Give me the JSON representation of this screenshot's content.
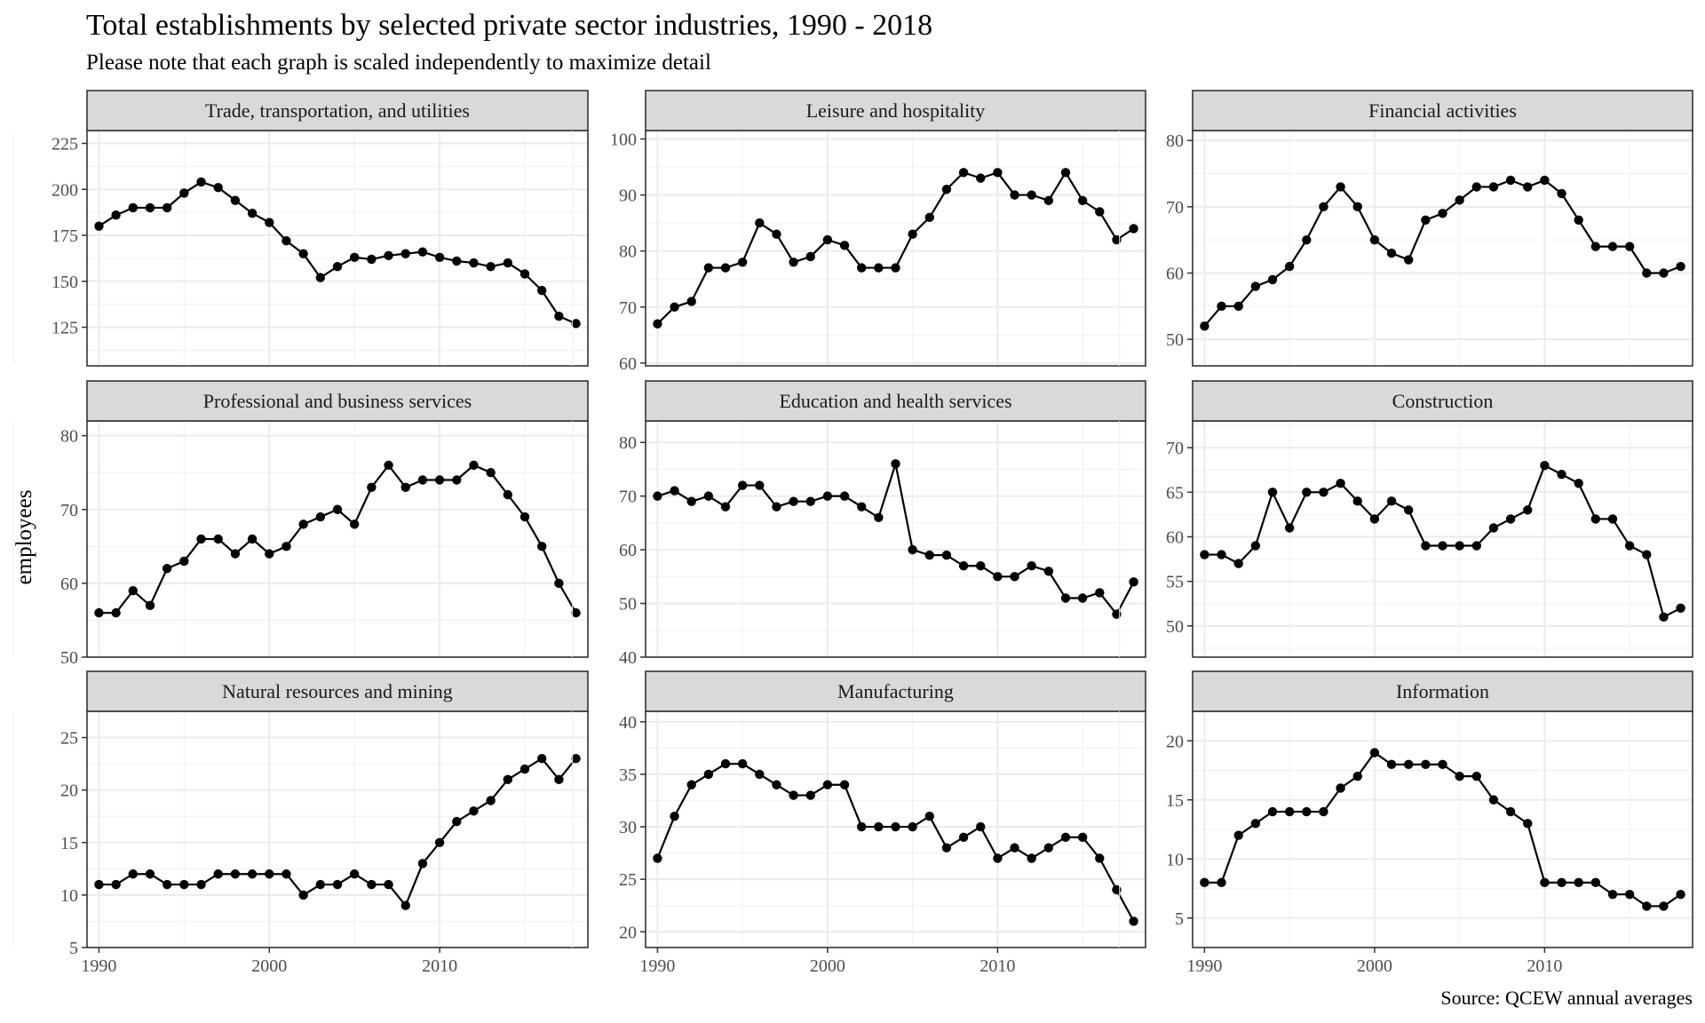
{
  "chart_data": {
    "type": "line",
    "title": "Total establishments by selected private sector industries, 1990 - 2018",
    "subtitle": "Please note that each graph is scaled independently to maximize detail",
    "ylabel": "employees",
    "caption": "Source: QCEW annual averages",
    "x": [
      1990,
      1991,
      1992,
      1993,
      1994,
      1995,
      1996,
      1997,
      1998,
      1999,
      2000,
      2001,
      2002,
      2003,
      2004,
      2005,
      2006,
      2007,
      2008,
      2009,
      2010,
      2011,
      2012,
      2013,
      2014,
      2015,
      2016,
      2017,
      2018
    ],
    "x_ticks": [
      1990,
      2000,
      2010
    ],
    "xlim": [
      1989.3,
      2018.7
    ],
    "grid": true,
    "series": [
      {
        "name": "Trade, transportation, and utilities",
        "ylim": [
          104,
          232
        ],
        "y_ticks": [
          125,
          150,
          175,
          200,
          225
        ],
        "values": [
          180,
          186,
          190,
          190,
          190,
          198,
          204,
          201,
          194,
          187,
          182,
          172,
          165,
          152,
          158,
          163,
          162,
          164,
          165,
          166,
          163,
          161,
          160,
          158,
          160,
          154,
          145,
          131,
          127
        ]
      },
      {
        "name": "Leisure and hospitality",
        "ylim": [
          59.5,
          101.5
        ],
        "y_ticks": [
          60,
          70,
          80,
          90,
          100
        ],
        "values": [
          67,
          70,
          71,
          77,
          77,
          78,
          85,
          83,
          78,
          79,
          82,
          81,
          77,
          77,
          77,
          83,
          86,
          91,
          94,
          93,
          94,
          90,
          90,
          89,
          94,
          89,
          87,
          82,
          84
        ]
      },
      {
        "name": "Financial activities",
        "ylim": [
          46,
          81.5
        ],
        "y_ticks": [
          50,
          60,
          70,
          80
        ],
        "values": [
          52,
          55,
          55,
          58,
          59,
          61,
          65,
          70,
          73,
          70,
          65,
          63,
          62,
          68,
          69,
          71,
          73,
          73,
          74,
          73,
          74,
          72,
          68,
          64,
          64,
          64,
          60,
          60,
          61
        ]
      },
      {
        "name": "Professional and business services",
        "ylim": [
          50,
          82
        ],
        "y_ticks": [
          50,
          60,
          70,
          80
        ],
        "values": [
          56,
          56,
          59,
          57,
          62,
          63,
          66,
          66,
          64,
          66,
          64,
          65,
          68,
          69,
          70,
          68,
          73,
          76,
          73,
          74,
          74,
          74,
          76,
          75,
          72,
          69,
          65,
          60,
          56
        ]
      },
      {
        "name": "Education and health services",
        "ylim": [
          40,
          84
        ],
        "y_ticks": [
          40,
          50,
          60,
          70,
          80
        ],
        "values": [
          70,
          71,
          69,
          70,
          68,
          72,
          72,
          68,
          69,
          69,
          70,
          70,
          68,
          66,
          76,
          60,
          59,
          59,
          57,
          57,
          55,
          55,
          57,
          56,
          51,
          51,
          52,
          48,
          54
        ]
      },
      {
        "name": "Construction",
        "ylim": [
          46.5,
          73
        ],
        "y_ticks": [
          50,
          55,
          60,
          65,
          70
        ],
        "values": [
          58,
          58,
          57,
          59,
          65,
          61,
          65,
          65,
          66,
          64,
          62,
          64,
          63,
          59,
          59,
          59,
          59,
          61,
          62,
          63,
          68,
          67,
          66,
          62,
          62,
          59,
          58,
          51,
          52
        ]
      },
      {
        "name": "Natural resources and mining",
        "ylim": [
          5,
          27.5
        ],
        "y_ticks": [
          5,
          10,
          15,
          20,
          25
        ],
        "values": [
          11,
          11,
          12,
          12,
          11,
          11,
          11,
          12,
          12,
          12,
          12,
          12,
          10,
          11,
          11,
          12,
          11,
          11,
          9,
          13,
          15,
          17,
          18,
          19,
          21,
          22,
          23,
          21,
          23
        ]
      },
      {
        "name": "Manufacturing",
        "ylim": [
          18.5,
          41
        ],
        "y_ticks": [
          20,
          25,
          30,
          35,
          40
        ],
        "values": [
          27,
          31,
          34,
          35,
          36,
          36,
          35,
          34,
          33,
          33,
          34,
          34,
          30,
          30,
          30,
          30,
          31,
          28,
          29,
          30,
          27,
          28,
          27,
          28,
          29,
          29,
          27,
          24,
          21
        ]
      },
      {
        "name": "Information",
        "ylim": [
          2.5,
          22.5
        ],
        "y_ticks": [
          5,
          10,
          15,
          20
        ],
        "values": [
          8,
          8,
          12,
          13,
          14,
          14,
          14,
          14,
          16,
          17,
          19,
          18,
          18,
          18,
          18,
          17,
          17,
          15,
          14,
          13,
          8,
          8,
          8,
          8,
          7,
          7,
          6,
          6,
          7
        ]
      }
    ]
  }
}
